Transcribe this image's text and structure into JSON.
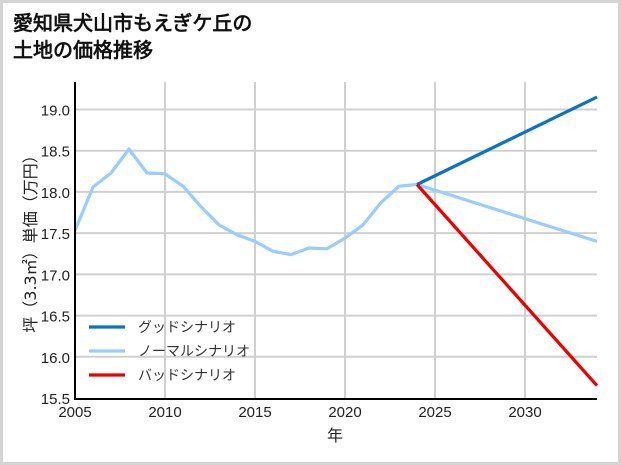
{
  "title": {
    "line1": "愛知県犬山市もえぎケ丘の",
    "line2": "土地の価格推移"
  },
  "chart_data": {
    "type": "line",
    "title": "愛知県犬山市もえぎケ丘の土地の価格推移",
    "xlabel": "年",
    "ylabel": "坪（3.3㎡）単価（万円）",
    "xlim": [
      2005,
      2034
    ],
    "ylim": [
      15.5,
      19.25
    ],
    "x_ticks": [
      2005,
      2010,
      2015,
      2020,
      2025,
      2030
    ],
    "y_ticks": [
      15.5,
      16.0,
      16.5,
      17.0,
      17.5,
      18.0,
      18.5,
      19.0
    ],
    "grid": true,
    "legend_position": "lower left",
    "series": [
      {
        "name": "ノーマルシナリオ",
        "color": "#99ccff",
        "x": [
          2005,
          2006,
          2007,
          2008,
          2009,
          2010,
          2011,
          2012,
          2013,
          2014,
          2015,
          2016,
          2017,
          2018,
          2019,
          2020,
          2021,
          2022,
          2023,
          2024,
          2034
        ],
        "values": [
          17.53,
          18.06,
          18.23,
          18.52,
          18.23,
          18.22,
          18.07,
          17.82,
          17.6,
          17.48,
          17.4,
          17.28,
          17.24,
          17.32,
          17.31,
          17.44,
          17.6,
          17.87,
          18.07,
          18.09,
          17.4
        ]
      },
      {
        "name": "グッドシナリオ",
        "color": "#0a74c4",
        "x": [
          2024,
          2034
        ],
        "values": [
          18.09,
          19.15
        ]
      },
      {
        "name": "バッドシナリオ",
        "color": "#ee0000",
        "x": [
          2024,
          2034
        ],
        "values": [
          18.09,
          15.65
        ]
      }
    ]
  },
  "legend": {
    "items": [
      {
        "label": "グッドシナリオ",
        "color": "#0a74c4"
      },
      {
        "label": "ノーマルシナリオ",
        "color": "#99ccff"
      },
      {
        "label": "バッドシナリオ",
        "color": "#ee0000"
      }
    ]
  },
  "axes": {
    "xlabel": "年",
    "ylabel": "坪（3.3㎡）単価（万円）",
    "x_tick_labels": [
      "2005",
      "2010",
      "2015",
      "2020",
      "2025",
      "2030"
    ],
    "y_tick_labels": [
      "19.0",
      "18.5",
      "18.0",
      "17.5",
      "17.0",
      "16.5",
      "16.0",
      "15.5"
    ]
  }
}
